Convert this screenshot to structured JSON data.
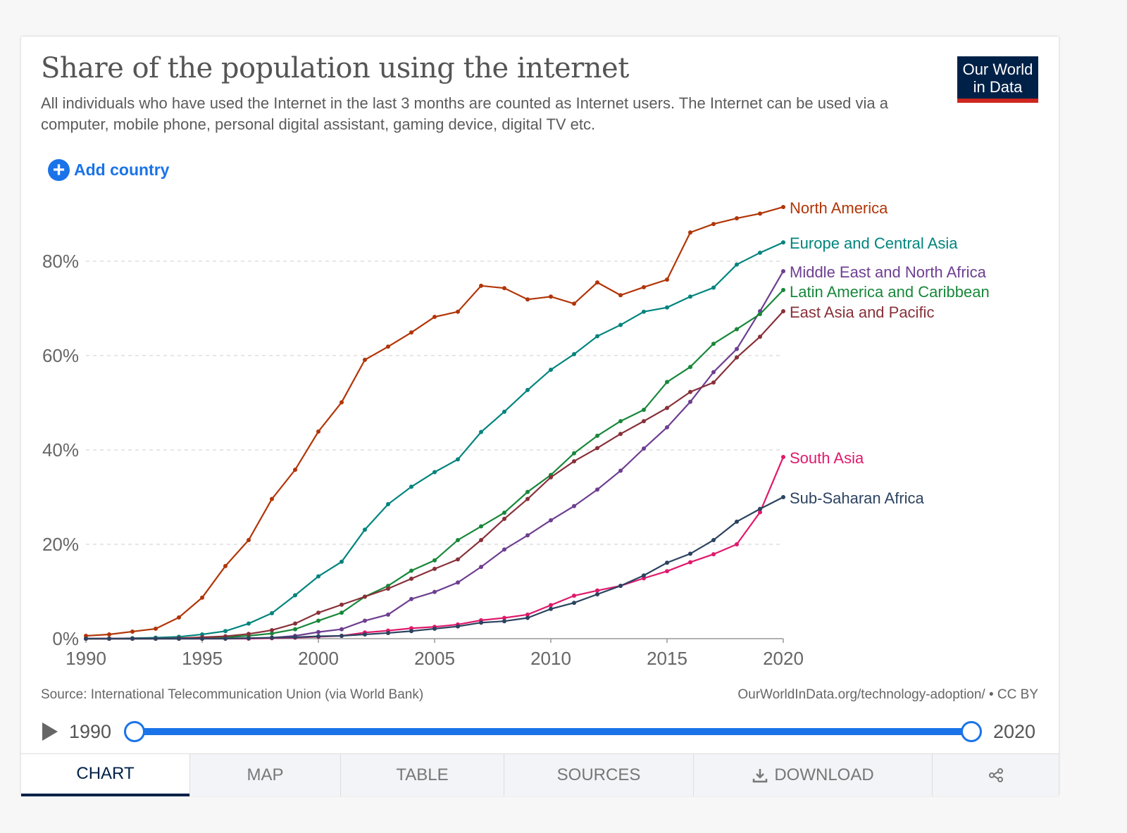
{
  "header": {
    "title": "Share of the population using the internet",
    "subtitle": "All individuals who have used the Internet in the last 3 months are counted as Internet users. The Internet can be used via a computer, mobile phone, personal digital assistant, gaming device, digital TV etc.",
    "logo_line1": "Our World",
    "logo_line2": "in Data"
  },
  "add_country_label": "Add country",
  "footer": {
    "source": "Source: International Telecommunication Union (via World Bank)",
    "license": "OurWorldInData.org/technology-adoption/ • CC BY"
  },
  "timeline": {
    "start": "1990",
    "end": "2020"
  },
  "tabs": [
    {
      "label": "CHART",
      "icon": ""
    },
    {
      "label": "MAP",
      "icon": ""
    },
    {
      "label": "TABLE",
      "icon": ""
    },
    {
      "label": "SOURCES",
      "icon": ""
    },
    {
      "label": "DOWNLOAD",
      "icon": "download-icon"
    },
    {
      "label": "",
      "icon": "share-icon"
    }
  ],
  "chart_data": {
    "type": "line",
    "title": "Share of the population using the internet",
    "xlabel": "",
    "ylabel": "",
    "xlim": [
      1990,
      2020
    ],
    "ylim": [
      0,
      92
    ],
    "yticks": [
      0,
      20,
      40,
      60,
      80
    ],
    "ytick_labels": [
      "0%",
      "20%",
      "40%",
      "60%",
      "80%"
    ],
    "xticks": [
      1990,
      1995,
      2000,
      2005,
      2010,
      2015,
      2020
    ],
    "xtick_labels": [
      "1990",
      "1995",
      "2000",
      "2005",
      "2010",
      "2015",
      "2020"
    ],
    "grid": "horizontal dashed",
    "legend": "right, labels at line ends",
    "x": [
      1990,
      1991,
      1992,
      1993,
      1994,
      1995,
      1996,
      1997,
      1998,
      1999,
      2000,
      2001,
      2002,
      2003,
      2004,
      2005,
      2006,
      2007,
      2008,
      2009,
      2010,
      2011,
      2012,
      2013,
      2014,
      2015,
      2016,
      2017,
      2018,
      2019,
      2020
    ],
    "series": [
      {
        "name": "North America",
        "color": "#b13507",
        "values": [
          0.6,
          0.9,
          1.5,
          2.1,
          4.5,
          8.7,
          15.4,
          20.9,
          29.6,
          35.8,
          43.9,
          50.1,
          59.1,
          61.9,
          64.9,
          68.2,
          69.3,
          74.8,
          74.3,
          71.9,
          72.5,
          71.0,
          75.5,
          72.8,
          74.5,
          76.1,
          86.1,
          87.9,
          89.1,
          90.1,
          91.5
        ]
      },
      {
        "name": "Europe and Central Asia",
        "color": "#00847e",
        "values": [
          0.0,
          0.0,
          0.1,
          0.2,
          0.4,
          0.9,
          1.6,
          3.2,
          5.4,
          9.2,
          13.2,
          16.3,
          23.1,
          28.5,
          32.2,
          35.3,
          38.0,
          43.8,
          48.1,
          52.7,
          57.0,
          60.3,
          64.1,
          66.5,
          69.3,
          70.2,
          72.5,
          74.4,
          79.3,
          81.8,
          84.0
        ]
      },
      {
        "name": "Middle East and North Africa",
        "color": "#6d3e91",
        "values": [
          0.0,
          0.0,
          0.0,
          0.0,
          0.0,
          0.0,
          0.1,
          0.1,
          0.2,
          0.6,
          1.4,
          2.0,
          3.8,
          5.1,
          8.4,
          9.9,
          11.9,
          15.2,
          18.9,
          21.9,
          25.1,
          28.1,
          31.6,
          35.6,
          40.3,
          44.8,
          50.2,
          56.5,
          61.4,
          69.4,
          77.9
        ]
      },
      {
        "name": "Latin America and Caribbean",
        "color": "#18873a",
        "values": [
          0.0,
          0.0,
          0.0,
          0.0,
          0.0,
          0.1,
          0.3,
          0.6,
          1.1,
          2.0,
          3.8,
          5.5,
          8.9,
          11.2,
          14.4,
          16.6,
          20.9,
          23.8,
          26.7,
          31.1,
          34.7,
          39.3,
          43.0,
          46.1,
          48.5,
          54.4,
          57.6,
          62.5,
          65.6,
          68.8,
          73.9
        ]
      },
      {
        "name": "East Asia and Pacific",
        "color": "#883039",
        "values": [
          0.0,
          0.0,
          0.0,
          0.0,
          0.1,
          0.3,
          0.5,
          1.0,
          1.8,
          3.2,
          5.5,
          7.2,
          8.9,
          10.6,
          12.7,
          14.8,
          16.8,
          20.9,
          25.4,
          29.6,
          34.2,
          37.6,
          40.4,
          43.4,
          46.1,
          48.9,
          52.3,
          54.3,
          59.6,
          64.0,
          69.4
        ]
      },
      {
        "name": "South Asia",
        "color": "#e0196b",
        "values": [
          0.0,
          0.0,
          0.0,
          0.0,
          0.0,
          0.0,
          0.0,
          0.0,
          0.1,
          0.2,
          0.4,
          0.6,
          1.3,
          1.7,
          2.2,
          2.5,
          3.0,
          3.9,
          4.4,
          5.1,
          7.1,
          9.1,
          10.2,
          11.2,
          12.8,
          14.3,
          16.2,
          17.9,
          20.0,
          26.8,
          38.5
        ]
      },
      {
        "name": "Sub-Saharan Africa",
        "color": "#2c4360",
        "values": [
          0.0,
          0.0,
          0.0,
          0.0,
          0.0,
          0.0,
          0.0,
          0.1,
          0.2,
          0.3,
          0.5,
          0.6,
          0.9,
          1.2,
          1.6,
          2.1,
          2.6,
          3.4,
          3.7,
          4.4,
          6.3,
          7.6,
          9.4,
          11.2,
          13.4,
          16.1,
          18.0,
          20.9,
          24.8,
          27.5,
          30.0
        ]
      }
    ]
  }
}
